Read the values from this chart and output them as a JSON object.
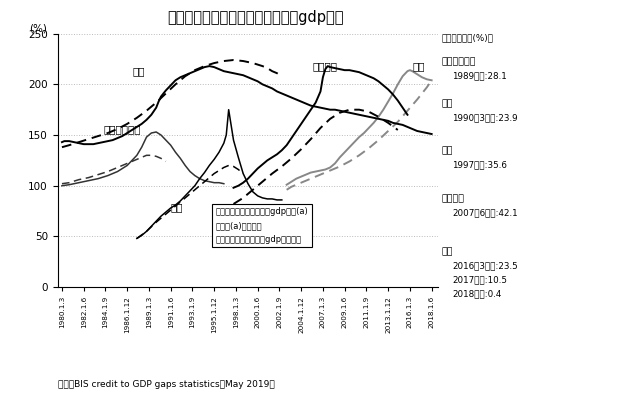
{
  "title": "非政府・非金融部門債務残高の対gdp比率",
  "ylabel": "(%)",
  "source": "出典：BIS credit to GDP gaps statistics（May 2019）",
  "ylim": [
    0,
    250
  ],
  "yticks": [
    0,
    50,
    100,
    150,
    200,
    250
  ],
  "background_color": "#ffffff",
  "grid_color": "#bbbbbb",
  "legend_lines": [
    "実線：債務残高の対名目gdp比率(a)",
    "破線：(a)の傾向線",
    "乖離幅：クレジット・gdpギャップ"
  ],
  "label_japan": "日本",
  "label_sweden": "スウェーデン",
  "label_thai": "タイ",
  "label_spain": "スペイン",
  "label_china": "中国",
  "right_header": "「最大乖離幅(%)」",
  "right_header2": "【最大乖離幅(%)】",
  "ann_sweden_c": "スウェーデン",
  "ann_sweden_d": "1989年末:28.1",
  "ann_japan_c": "日本",
  "ann_japan_d": "1990年3月末:23.9",
  "ann_thai_c": "タイ",
  "ann_thai_d": "1997年末:35.6",
  "ann_spain_c": "スペイン",
  "ann_spain_d": "2007年6月末:42.1",
  "ann_china_c": "中国",
  "ann_china_d1": "2016年3月末:23.5",
  "ann_china_d2": "2017年末:10.5",
  "ann_china_d3": "2018年末:0.4",
  "x_ticklabels": [
    "1980.1.3",
    "1982.1.6",
    "1984.1.9",
    "1986.1.12",
    "1989.1.3",
    "1991.1.6",
    "1993.1.9",
    "1995.1.12",
    "1998.1.3",
    "2000.1.6",
    "2002.1.9",
    "2004.1.12",
    "2007.1.3",
    "2009.1.6",
    "2011.1.9",
    "2013.1.12",
    "2016.1.3",
    "2018.1.6"
  ],
  "x_tick_values": [
    1980.25,
    1982.5,
    1984.75,
    1987.0,
    1989.25,
    1991.5,
    1993.75,
    1996.0,
    1998.25,
    2000.5,
    2002.75,
    2005.0,
    2007.25,
    2009.5,
    2011.75,
    2014.0,
    2016.25,
    2018.5
  ],
  "japan_solid_x": [
    1980.25,
    1980.5,
    1981.0,
    1981.5,
    1982.0,
    1982.5,
    1983.0,
    1983.5,
    1984.0,
    1984.5,
    1985.0,
    1985.5,
    1986.0,
    1986.5,
    1987.0,
    1987.5,
    1988.0,
    1988.5,
    1989.0,
    1989.5,
    1990.0,
    1990.25,
    1990.5,
    1991.0,
    1991.5,
    1992.0,
    1992.5,
    1993.0,
    1993.5,
    1994.0,
    1994.5,
    1995.0,
    1995.5,
    1996.0,
    1996.5,
    1997.0,
    1997.5,
    1998.0,
    1998.5,
    1999.0,
    1999.5,
    2000.0,
    2000.5,
    2001.0,
    2001.5,
    2002.0,
    2002.5,
    2003.0,
    2003.5,
    2004.0,
    2004.5,
    2005.0,
    2005.5,
    2006.0,
    2006.5,
    2007.0,
    2007.5,
    2008.0,
    2008.5,
    2009.0,
    2009.5,
    2010.0,
    2010.5,
    2011.0,
    2011.5,
    2012.0,
    2012.5,
    2013.0,
    2013.5,
    2014.0,
    2014.5,
    2015.0,
    2015.5,
    2016.0,
    2016.5,
    2017.0,
    2017.5,
    2018.0,
    2018.5
  ],
  "japan_solid_y": [
    143,
    144,
    144,
    143,
    142,
    141,
    141,
    141,
    142,
    143,
    144,
    145,
    147,
    149,
    152,
    155,
    158,
    161,
    165,
    170,
    177,
    183,
    188,
    194,
    199,
    204,
    207,
    209,
    211,
    213,
    215,
    217,
    218,
    217,
    215,
    213,
    212,
    211,
    210,
    209,
    207,
    205,
    203,
    200,
    198,
    196,
    193,
    191,
    189,
    187,
    185,
    183,
    181,
    179,
    178,
    177,
    176,
    175,
    175,
    174,
    173,
    172,
    171,
    170,
    169,
    168,
    167,
    166,
    165,
    164,
    162,
    161,
    160,
    158,
    156,
    154,
    153,
    152,
    151
  ],
  "japan_dashed_x": [
    1980.25,
    1981.0,
    1982.0,
    1983.0,
    1984.0,
    1985.0,
    1986.0,
    1987.0,
    1988.0,
    1989.0,
    1990.0,
    1991.0,
    1992.0,
    1993.0,
    1994.0,
    1995.0,
    1996.0,
    1997.0,
    1998.0,
    1999.0,
    2000.0,
    2001.0,
    2001.5,
    2002.0,
    2002.5,
    2003.0
  ],
  "japan_dashed_y": [
    138,
    140,
    143,
    146,
    149,
    152,
    156,
    161,
    167,
    174,
    182,
    191,
    200,
    208,
    214,
    218,
    221,
    223,
    224,
    223,
    221,
    218,
    216,
    213,
    211,
    208
  ],
  "sweden_solid_x": [
    1980.25,
    1981.0,
    1982.0,
    1983.0,
    1984.0,
    1985.0,
    1986.0,
    1987.0,
    1988.0,
    1988.5,
    1989.0,
    1989.5,
    1990.0,
    1990.5,
    1991.0,
    1991.5,
    1992.0,
    1992.5,
    1993.0,
    1993.5,
    1994.0,
    1994.5,
    1995.0,
    1995.5,
    1996.0,
    1996.5,
    1997.0
  ],
  "sweden_solid_y": [
    100,
    101,
    103,
    105,
    107,
    110,
    114,
    120,
    130,
    138,
    148,
    152,
    153,
    150,
    145,
    140,
    133,
    127,
    120,
    114,
    110,
    107,
    105,
    104,
    103,
    103,
    102
  ],
  "sweden_dashed_x": [
    1980.25,
    1981.0,
    1982.0,
    1983.0,
    1984.0,
    1985.0,
    1986.0,
    1987.0,
    1988.0,
    1988.5,
    1989.0,
    1989.5,
    1990.0,
    1990.5,
    1991.0
  ],
  "sweden_dashed_y": [
    102,
    103,
    106,
    108,
    111,
    114,
    118,
    122,
    126,
    128,
    130,
    130,
    129,
    127,
    124
  ],
  "thai_solid_x": [
    1988.0,
    1988.5,
    1989.0,
    1989.5,
    1990.0,
    1990.5,
    1991.0,
    1991.5,
    1992.0,
    1992.5,
    1993.0,
    1993.5,
    1994.0,
    1994.5,
    1995.0,
    1995.5,
    1996.0,
    1996.5,
    1997.0,
    1997.25,
    1997.5,
    1997.75,
    1998.0,
    1998.5,
    1999.0,
    1999.5,
    2000.0,
    2000.5,
    2001.0,
    2001.5,
    2002.0,
    2002.5,
    2003.0
  ],
  "thai_solid_y": [
    48,
    51,
    55,
    60,
    65,
    70,
    74,
    78,
    81,
    85,
    90,
    95,
    100,
    107,
    113,
    120,
    126,
    133,
    142,
    150,
    175,
    160,
    145,
    128,
    112,
    102,
    94,
    90,
    88,
    87,
    87,
    86,
    86
  ],
  "thai_dashed_x": [
    1988.0,
    1989.0,
    1990.0,
    1991.0,
    1992.0,
    1993.0,
    1994.0,
    1995.0,
    1996.0,
    1997.0,
    1997.5,
    1998.0,
    1998.5,
    1999.0
  ],
  "thai_dashed_y": [
    48,
    55,
    64,
    72,
    80,
    88,
    96,
    104,
    112,
    118,
    120,
    119,
    116,
    112
  ],
  "spain_solid_x": [
    1998.0,
    1998.5,
    1999.0,
    1999.5,
    2000.0,
    2000.5,
    2001.0,
    2001.5,
    2002.0,
    2002.5,
    2003.0,
    2003.5,
    2004.0,
    2004.5,
    2005.0,
    2005.5,
    2006.0,
    2006.5,
    2007.0,
    2007.25,
    2007.5,
    2007.75,
    2008.0,
    2008.5,
    2009.0,
    2009.5,
    2010.0,
    2010.5,
    2011.0,
    2011.5,
    2012.0,
    2012.5,
    2013.0,
    2013.5,
    2014.0,
    2014.5,
    2015.0,
    2015.5,
    2016.0
  ],
  "spain_solid_y": [
    98,
    100,
    103,
    107,
    112,
    117,
    121,
    125,
    128,
    131,
    135,
    140,
    147,
    154,
    161,
    168,
    175,
    182,
    193,
    207,
    215,
    218,
    217,
    216,
    215,
    214,
    214,
    213,
    212,
    210,
    208,
    206,
    203,
    199,
    195,
    190,
    184,
    177,
    170
  ],
  "spain_dashed_x": [
    1998.0,
    1999.0,
    2000.0,
    2001.0,
    2002.0,
    2003.0,
    2004.0,
    2005.0,
    2006.0,
    2007.0,
    2008.0,
    2009.0,
    2010.0,
    2011.0,
    2012.0,
    2013.0,
    2014.0,
    2015.0
  ],
  "spain_dashed_y": [
    82,
    88,
    96,
    104,
    112,
    119,
    127,
    136,
    146,
    157,
    166,
    172,
    175,
    175,
    173,
    168,
    162,
    155
  ],
  "china_solid_x": [
    2003.5,
    2004.0,
    2004.5,
    2005.0,
    2005.5,
    2006.0,
    2006.5,
    2007.0,
    2007.5,
    2008.0,
    2008.5,
    2009.0,
    2009.5,
    2010.0,
    2010.5,
    2011.0,
    2011.5,
    2012.0,
    2012.5,
    2013.0,
    2013.5,
    2014.0,
    2014.5,
    2015.0,
    2015.5,
    2016.0,
    2016.25,
    2016.5,
    2017.0,
    2017.5,
    2018.0,
    2018.5
  ],
  "china_solid_y": [
    101,
    104,
    107,
    109,
    111,
    113,
    114,
    115,
    116,
    118,
    122,
    128,
    133,
    138,
    143,
    148,
    152,
    157,
    162,
    168,
    175,
    183,
    191,
    200,
    208,
    213,
    214,
    213,
    210,
    207,
    205,
    204
  ],
  "china_dashed_x": [
    2003.5,
    2004.0,
    2005.0,
    2006.0,
    2007.0,
    2008.0,
    2009.0,
    2010.0,
    2011.0,
    2012.0,
    2013.0,
    2014.0,
    2015.0,
    2016.0,
    2017.0,
    2018.0,
    2018.5
  ],
  "china_dashed_y": [
    96,
    99,
    103,
    107,
    111,
    115,
    119,
    124,
    130,
    137,
    145,
    154,
    163,
    174,
    185,
    197,
    204
  ]
}
